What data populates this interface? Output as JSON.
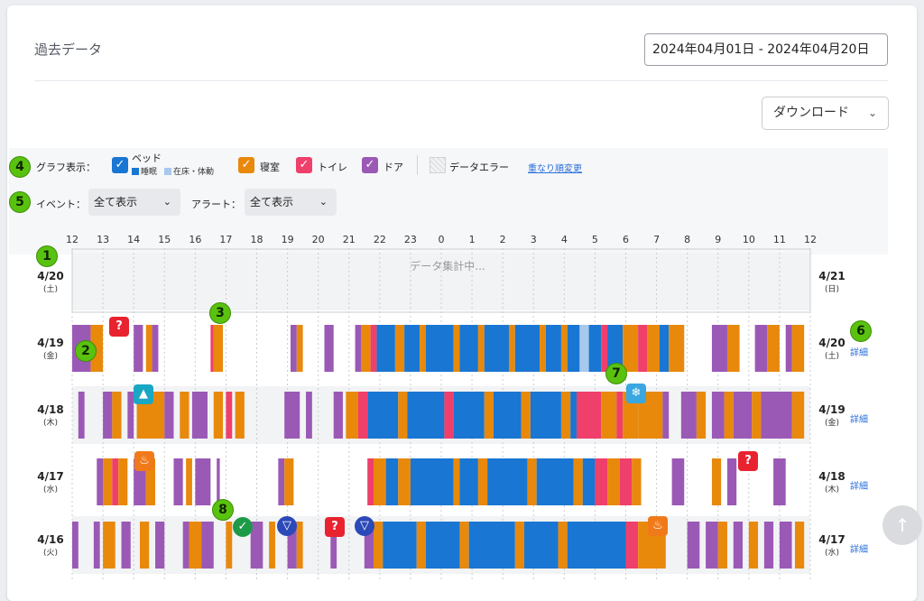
{
  "header": {
    "title": "過去データ",
    "date_range": "2024年04月01日 - 2024年04月20日",
    "download_label": "ダウンロード"
  },
  "markers": [
    "1",
    "2",
    "3",
    "4",
    "5",
    "6",
    "7",
    "8"
  ],
  "graph_display": {
    "label": "グラフ表示：",
    "bed": "ベッド",
    "bed_sleep": "睡眠",
    "bed_in": "在床・体動",
    "bedroom": "寝室",
    "toilet": "トイレ",
    "door": "ドア",
    "data_error": "データエラー",
    "reorder_link": "重なり順変更"
  },
  "filters": {
    "event_label": "イベント：",
    "event_value": "全て表示",
    "alert_label": "アラート：",
    "alert_value": "全て表示"
  },
  "colors": {
    "sleep": "#1976d2",
    "in_bed": "#a8c8ec",
    "bedroom": "#e8890c",
    "toilet": "#ef3f6b",
    "door": "#9b59b6",
    "marker": "#59c20f"
  },
  "axis": {
    "hours": [
      "12",
      "13",
      "14",
      "15",
      "16",
      "17",
      "18",
      "19",
      "20",
      "21",
      "22",
      "23",
      "0",
      "1",
      "2",
      "3",
      "4",
      "5",
      "6",
      "7",
      "8",
      "9",
      "10",
      "11",
      "12"
    ]
  },
  "rows": [
    {
      "day": "4/20",
      "dow": "(土)",
      "next_day": "4/21",
      "next_dow": "(日)",
      "status": "データ集計中...",
      "detail": "",
      "segments": []
    },
    {
      "day": "4/19",
      "dow": "(金)",
      "next_day": "4/20",
      "next_dow": "(土)",
      "detail": "詳細",
      "segments": [
        [
          0.0,
          0.6,
          "door"
        ],
        [
          0.6,
          1.0,
          "bedroom"
        ],
        [
          2.0,
          2.3,
          "door"
        ],
        [
          2.4,
          2.6,
          "bedroom"
        ],
        [
          2.6,
          2.8,
          "door"
        ],
        [
          4.5,
          4.6,
          "toilet"
        ],
        [
          4.6,
          4.9,
          "bedroom"
        ],
        [
          7.1,
          7.3,
          "door"
        ],
        [
          7.3,
          7.5,
          "bedroom"
        ],
        [
          8.2,
          8.5,
          "door"
        ],
        [
          9.2,
          9.4,
          "door"
        ],
        [
          9.4,
          9.7,
          "bedroom"
        ],
        [
          9.7,
          9.9,
          "toilet"
        ],
        [
          9.9,
          10.5,
          "sleep"
        ],
        [
          10.5,
          10.8,
          "bedroom"
        ],
        [
          10.8,
          11.3,
          "sleep"
        ],
        [
          11.3,
          11.5,
          "bedroom"
        ],
        [
          11.5,
          12.4,
          "sleep"
        ],
        [
          12.4,
          12.6,
          "bedroom"
        ],
        [
          12.6,
          13.2,
          "sleep"
        ],
        [
          13.2,
          13.4,
          "bedroom"
        ],
        [
          13.4,
          14.2,
          "sleep"
        ],
        [
          14.2,
          14.4,
          "bedroom"
        ],
        [
          14.4,
          15.2,
          "sleep"
        ],
        [
          15.2,
          15.4,
          "bedroom"
        ],
        [
          15.4,
          15.9,
          "sleep"
        ],
        [
          15.9,
          16.1,
          "bedroom"
        ],
        [
          16.1,
          16.5,
          "sleep"
        ],
        [
          16.5,
          16.8,
          "in_bed"
        ],
        [
          16.8,
          17.2,
          "sleep"
        ],
        [
          17.2,
          17.4,
          "toilet"
        ],
        [
          17.4,
          17.9,
          "sleep"
        ],
        [
          17.9,
          18.4,
          "bedroom"
        ],
        [
          18.4,
          18.7,
          "toilet"
        ],
        [
          18.7,
          19.1,
          "bedroom"
        ],
        [
          19.1,
          19.4,
          "sleep"
        ],
        [
          19.4,
          19.9,
          "bedroom"
        ],
        [
          20.8,
          21.3,
          "door"
        ],
        [
          21.3,
          21.7,
          "bedroom"
        ],
        [
          22.2,
          22.6,
          "door"
        ],
        [
          22.6,
          23.0,
          "bedroom"
        ],
        [
          23.2,
          23.4,
          "door"
        ],
        [
          23.4,
          23.8,
          "bedroom"
        ]
      ]
    },
    {
      "day": "4/18",
      "dow": "(木)",
      "next_day": "4/19",
      "next_dow": "(金)",
      "detail": "詳細",
      "segments": [
        [
          0.2,
          0.4,
          "door"
        ],
        [
          1.0,
          1.3,
          "door"
        ],
        [
          1.3,
          1.6,
          "bedroom"
        ],
        [
          1.8,
          2.0,
          "door"
        ],
        [
          2.1,
          3.0,
          "bedroom"
        ],
        [
          3.0,
          3.3,
          "door"
        ],
        [
          3.5,
          3.8,
          "bedroom"
        ],
        [
          3.9,
          4.4,
          "door"
        ],
        [
          4.6,
          4.9,
          "bedroom"
        ],
        [
          5.0,
          5.2,
          "toilet"
        ],
        [
          5.3,
          5.6,
          "bedroom"
        ],
        [
          6.9,
          7.4,
          "door"
        ],
        [
          7.6,
          7.8,
          "door"
        ],
        [
          8.5,
          8.8,
          "door"
        ],
        [
          8.9,
          9.3,
          "bedroom"
        ],
        [
          9.3,
          9.6,
          "toilet"
        ],
        [
          9.6,
          10.6,
          "sleep"
        ],
        [
          10.6,
          10.9,
          "bedroom"
        ],
        [
          10.9,
          12.1,
          "sleep"
        ],
        [
          12.1,
          12.4,
          "toilet"
        ],
        [
          12.4,
          13.4,
          "sleep"
        ],
        [
          13.4,
          13.7,
          "bedroom"
        ],
        [
          13.7,
          14.6,
          "sleep"
        ],
        [
          14.6,
          14.9,
          "bedroom"
        ],
        [
          14.9,
          15.9,
          "sleep"
        ],
        [
          15.9,
          16.2,
          "bedroom"
        ],
        [
          16.2,
          16.4,
          "sleep"
        ],
        [
          16.4,
          17.2,
          "toilet"
        ],
        [
          17.2,
          17.7,
          "bedroom"
        ],
        [
          17.7,
          17.9,
          "toilet"
        ],
        [
          17.9,
          18.4,
          "bedroom"
        ],
        [
          18.4,
          19.2,
          "bedroom"
        ],
        [
          19.2,
          19.4,
          "door"
        ],
        [
          19.8,
          20.3,
          "door"
        ],
        [
          20.3,
          20.6,
          "bedroom"
        ],
        [
          20.8,
          21.2,
          "door"
        ],
        [
          21.2,
          21.5,
          "bedroom"
        ],
        [
          21.5,
          22.1,
          "door"
        ],
        [
          22.1,
          22.4,
          "bedroom"
        ],
        [
          22.4,
          23.4,
          "door"
        ],
        [
          23.4,
          23.8,
          "bedroom"
        ]
      ]
    },
    {
      "day": "4/17",
      "dow": "(水)",
      "next_day": "4/18",
      "next_dow": "(木)",
      "detail": "詳細",
      "segments": [
        [
          0.8,
          1.0,
          "door"
        ],
        [
          1.0,
          1.3,
          "bedroom"
        ],
        [
          1.3,
          1.5,
          "toilet"
        ],
        [
          1.5,
          1.8,
          "bedroom"
        ],
        [
          2.0,
          2.4,
          "door"
        ],
        [
          2.4,
          2.7,
          "bedroom"
        ],
        [
          3.3,
          3.6,
          "door"
        ],
        [
          3.7,
          3.9,
          "bedroom"
        ],
        [
          4.0,
          4.5,
          "door"
        ],
        [
          4.7,
          4.8,
          "door"
        ],
        [
          6.7,
          6.9,
          "door"
        ],
        [
          6.9,
          7.2,
          "bedroom"
        ],
        [
          9.6,
          9.8,
          "toilet"
        ],
        [
          9.8,
          10.2,
          "bedroom"
        ],
        [
          10.2,
          10.6,
          "sleep"
        ],
        [
          10.6,
          11.0,
          "bedroom"
        ],
        [
          11.0,
          12.4,
          "sleep"
        ],
        [
          12.4,
          12.6,
          "bedroom"
        ],
        [
          12.6,
          13.2,
          "sleep"
        ],
        [
          13.2,
          13.5,
          "bedroom"
        ],
        [
          13.5,
          14.8,
          "sleep"
        ],
        [
          14.8,
          15.1,
          "bedroom"
        ],
        [
          15.1,
          16.3,
          "sleep"
        ],
        [
          16.3,
          16.6,
          "bedroom"
        ],
        [
          16.6,
          17.0,
          "sleep"
        ],
        [
          17.0,
          17.4,
          "toilet"
        ],
        [
          17.4,
          17.8,
          "bedroom"
        ],
        [
          17.8,
          18.2,
          "toilet"
        ],
        [
          18.2,
          18.5,
          "bedroom"
        ],
        [
          19.5,
          19.9,
          "door"
        ],
        [
          20.8,
          21.1,
          "bedroom"
        ],
        [
          21.3,
          21.6,
          "door"
        ],
        [
          22.8,
          23.2,
          "door"
        ]
      ]
    },
    {
      "day": "4/16",
      "dow": "(火)",
      "next_day": "4/17",
      "next_dow": "(水)",
      "detail": "詳細",
      "segments": [
        [
          0.0,
          0.2,
          "door"
        ],
        [
          0.7,
          0.9,
          "door"
        ],
        [
          1.0,
          1.4,
          "bedroom"
        ],
        [
          1.6,
          1.9,
          "door"
        ],
        [
          2.2,
          2.5,
          "bedroom"
        ],
        [
          2.7,
          3.0,
          "door"
        ],
        [
          3.6,
          3.8,
          "door"
        ],
        [
          3.8,
          4.2,
          "bedroom"
        ],
        [
          4.2,
          4.6,
          "door"
        ],
        [
          5.0,
          5.2,
          "bedroom"
        ],
        [
          5.8,
          6.2,
          "door"
        ],
        [
          6.4,
          6.6,
          "bedroom"
        ],
        [
          7.0,
          7.3,
          "door"
        ],
        [
          7.3,
          7.5,
          "bedroom"
        ],
        [
          8.4,
          8.6,
          "door"
        ],
        [
          9.5,
          9.8,
          "door"
        ],
        [
          9.8,
          10.1,
          "bedroom"
        ],
        [
          10.1,
          11.2,
          "sleep"
        ],
        [
          11.2,
          11.5,
          "bedroom"
        ],
        [
          11.5,
          12.6,
          "sleep"
        ],
        [
          12.6,
          12.9,
          "bedroom"
        ],
        [
          12.9,
          14.4,
          "sleep"
        ],
        [
          14.4,
          14.7,
          "bedroom"
        ],
        [
          14.7,
          15.8,
          "sleep"
        ],
        [
          15.8,
          16.1,
          "bedroom"
        ],
        [
          16.1,
          18.0,
          "sleep"
        ],
        [
          18.0,
          18.4,
          "toilet"
        ],
        [
          18.4,
          19.3,
          "bedroom"
        ],
        [
          20.0,
          20.4,
          "door"
        ],
        [
          20.6,
          21.0,
          "door"
        ],
        [
          21.0,
          21.3,
          "bedroom"
        ],
        [
          21.5,
          21.8,
          "door"
        ],
        [
          22.0,
          22.3,
          "bedroom"
        ],
        [
          22.5,
          22.8,
          "door"
        ],
        [
          23.0,
          23.4,
          "door"
        ],
        [
          23.5,
          23.8,
          "bedroom"
        ]
      ]
    }
  ]
}
